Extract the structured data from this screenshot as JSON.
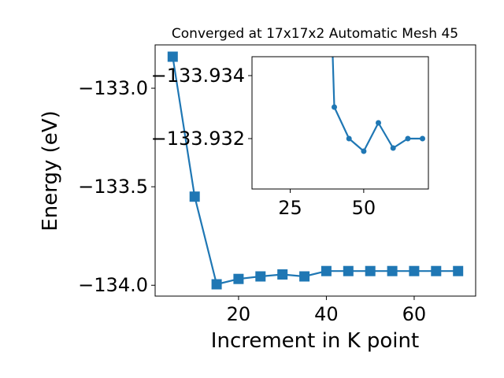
{
  "chart_data": [
    {
      "type": "line",
      "title": "Converged at 17x17x2 Automatic Mesh 45",
      "xlabel": "Increment in K point",
      "ylabel": "Energy (eV)",
      "xlim": [
        1,
        74
      ],
      "ylim": [
        -134.055,
        -132.78
      ],
      "xticks": [
        20,
        40,
        60
      ],
      "yticks": [
        -133.0,
        -133.5,
        -134.0
      ],
      "ytick_labels": [
        "−133.0",
        "−133.5",
        "−134.0"
      ],
      "grid": false,
      "legend": "none",
      "series": [
        {
          "color": "#1f77b4",
          "marker": "square",
          "x": [
            5,
            10,
            15,
            20,
            25,
            30,
            35,
            40,
            45,
            50,
            55,
            60,
            65,
            70
          ],
          "y": [
            -132.84,
            -133.55,
            -133.995,
            -133.968,
            -133.955,
            -133.945,
            -133.955,
            -133.928,
            -133.928,
            -133.928,
            -133.928,
            -133.928,
            -133.928,
            -133.928
          ]
        }
      ]
    },
    {
      "type": "line",
      "title": "",
      "xlabel": "",
      "ylabel": "",
      "xlim": [
        12,
        72
      ],
      "ylim": [
        -133.9304,
        -133.9346
      ],
      "xticks": [
        25,
        50
      ],
      "yticks": [
        -133.934,
        -133.932
      ],
      "ytick_labels": [
        "−133.934",
        "−133.932"
      ],
      "grid": false,
      "legend": "none",
      "series": [
        {
          "color": "#1f77b4",
          "marker": "circle",
          "x": [
            40,
            45,
            50,
            55,
            60,
            65,
            70
          ],
          "y": [
            -133.933,
            -133.932,
            -133.9316,
            -133.9325,
            -133.9317,
            -133.932,
            -133.932
          ],
          "entry_from_above": true
        }
      ]
    }
  ]
}
